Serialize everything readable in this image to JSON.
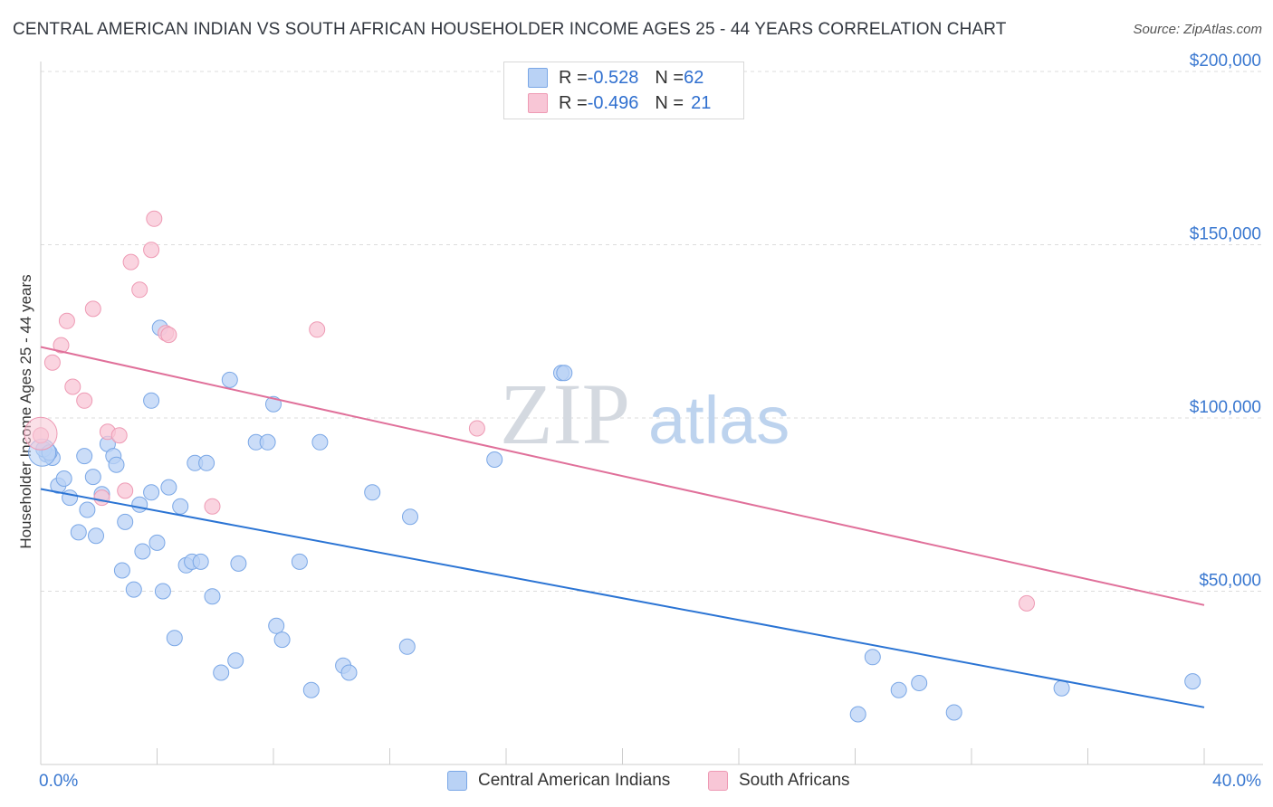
{
  "title": "CENTRAL AMERICAN INDIAN VS SOUTH AFRICAN HOUSEHOLDER INCOME AGES 25 - 44 YEARS CORRELATION CHART",
  "source": "Source: ZipAtlas.com",
  "watermark": {
    "zip": "ZIP",
    "atlas": "atlas"
  },
  "colors": {
    "blue_fill": "#b9d2f5",
    "blue_stroke": "#7aa7e6",
    "blue_line": "#2b74d4",
    "pink_fill": "#f8c6d6",
    "pink_stroke": "#ee9ab4",
    "pink_line": "#e0709a",
    "axis_text": "#3a78d0",
    "grid": "#dcdcdc"
  },
  "legend": {
    "rows": [
      {
        "r_label": "R = ",
        "r_value": "-0.528",
        "n_label": "N = ",
        "n_value": "62"
      },
      {
        "r_label": "R = ",
        "r_value": "-0.496",
        "n_label": "N = ",
        "n_value": "21"
      }
    ]
  },
  "bottom_legend": {
    "series1": "Central American Indians",
    "series2": "South Africans"
  },
  "chart_data": {
    "type": "scatter",
    "title": "CENTRAL AMERICAN INDIAN VS SOUTH AFRICAN HOUSEHOLDER INCOME AGES 25 - 44 YEARS CORRELATION CHART",
    "xlabel": "",
    "ylabel": "Householder Income Ages 25 - 44 years",
    "x_tick_labels": [
      "0.0%",
      "40.0%"
    ],
    "y_tick_labels": [
      "$50,000",
      "$100,000",
      "$150,000",
      "$200,000"
    ],
    "y_ticks": [
      50000,
      100000,
      150000,
      200000
    ],
    "xlim": [
      0,
      40
    ],
    "ylim": [
      0,
      205000
    ],
    "grid": true,
    "legend_position": "top-center",
    "series": [
      {
        "name": "Central American Indians",
        "color": "#b9d2f5",
        "trend": {
          "x": [
            0,
            40
          ],
          "y": [
            79500,
            16500
          ]
        },
        "points": [
          [
            0.2,
            89500
          ],
          [
            0.4,
            88500
          ],
          [
            0.6,
            80500
          ],
          [
            0.8,
            82500
          ],
          [
            1.0,
            77000
          ],
          [
            1.3,
            67000
          ],
          [
            1.5,
            89000
          ],
          [
            1.6,
            73500
          ],
          [
            1.8,
            83000
          ],
          [
            1.9,
            66000
          ],
          [
            2.1,
            78000
          ],
          [
            2.3,
            92500
          ],
          [
            2.5,
            89000
          ],
          [
            2.6,
            86500
          ],
          [
            2.8,
            56000
          ],
          [
            2.9,
            70000
          ],
          [
            3.2,
            50500
          ],
          [
            3.4,
            75000
          ],
          [
            3.5,
            61500
          ],
          [
            3.8,
            105000
          ],
          [
            3.8,
            78500
          ],
          [
            4.0,
            64000
          ],
          [
            4.1,
            126000
          ],
          [
            4.2,
            50000
          ],
          [
            4.4,
            80000
          ],
          [
            4.6,
            36500
          ],
          [
            4.8,
            74500
          ],
          [
            5.0,
            57500
          ],
          [
            5.2,
            58500
          ],
          [
            5.3,
            87000
          ],
          [
            5.5,
            58500
          ],
          [
            5.7,
            87000
          ],
          [
            5.9,
            48500
          ],
          [
            6.2,
            26500
          ],
          [
            6.5,
            111000
          ],
          [
            6.7,
            30000
          ],
          [
            6.8,
            58000
          ],
          [
            7.4,
            93000
          ],
          [
            7.8,
            93000
          ],
          [
            8.0,
            104000
          ],
          [
            8.1,
            40000
          ],
          [
            8.3,
            36000
          ],
          [
            8.9,
            58500
          ],
          [
            9.3,
            21500
          ],
          [
            9.6,
            93000
          ],
          [
            10.4,
            28500
          ],
          [
            10.6,
            26500
          ],
          [
            11.4,
            78500
          ],
          [
            12.6,
            34000
          ],
          [
            12.7,
            71500
          ],
          [
            15.6,
            88000
          ],
          [
            17.9,
            113000
          ],
          [
            18.0,
            113000
          ],
          [
            28.1,
            14500
          ],
          [
            28.6,
            31000
          ],
          [
            29.5,
            21500
          ],
          [
            30.2,
            23500
          ],
          [
            31.4,
            15000
          ],
          [
            35.1,
            22000
          ],
          [
            39.6,
            24000
          ],
          [
            0.1,
            91000
          ],
          [
            0.3,
            90000
          ]
        ]
      },
      {
        "name": "South Africans",
        "color": "#f8c6d6",
        "trend": {
          "x": [
            0,
            40
          ],
          "y": [
            120500,
            46000
          ]
        },
        "points": [
          [
            0.0,
            95000
          ],
          [
            0.4,
            116000
          ],
          [
            0.7,
            121000
          ],
          [
            0.9,
            128000
          ],
          [
            1.1,
            109000
          ],
          [
            1.5,
            105000
          ],
          [
            1.8,
            131500
          ],
          [
            2.1,
            77000
          ],
          [
            2.3,
            96000
          ],
          [
            2.7,
            95000
          ],
          [
            2.9,
            79000
          ],
          [
            3.1,
            145000
          ],
          [
            3.4,
            137000
          ],
          [
            3.8,
            148500
          ],
          [
            3.9,
            157500
          ],
          [
            4.3,
            124500
          ],
          [
            4.4,
            124000
          ],
          [
            5.9,
            74500
          ],
          [
            9.5,
            125500
          ],
          [
            15.0,
            97000
          ],
          [
            33.9,
            46500
          ]
        ]
      }
    ]
  }
}
